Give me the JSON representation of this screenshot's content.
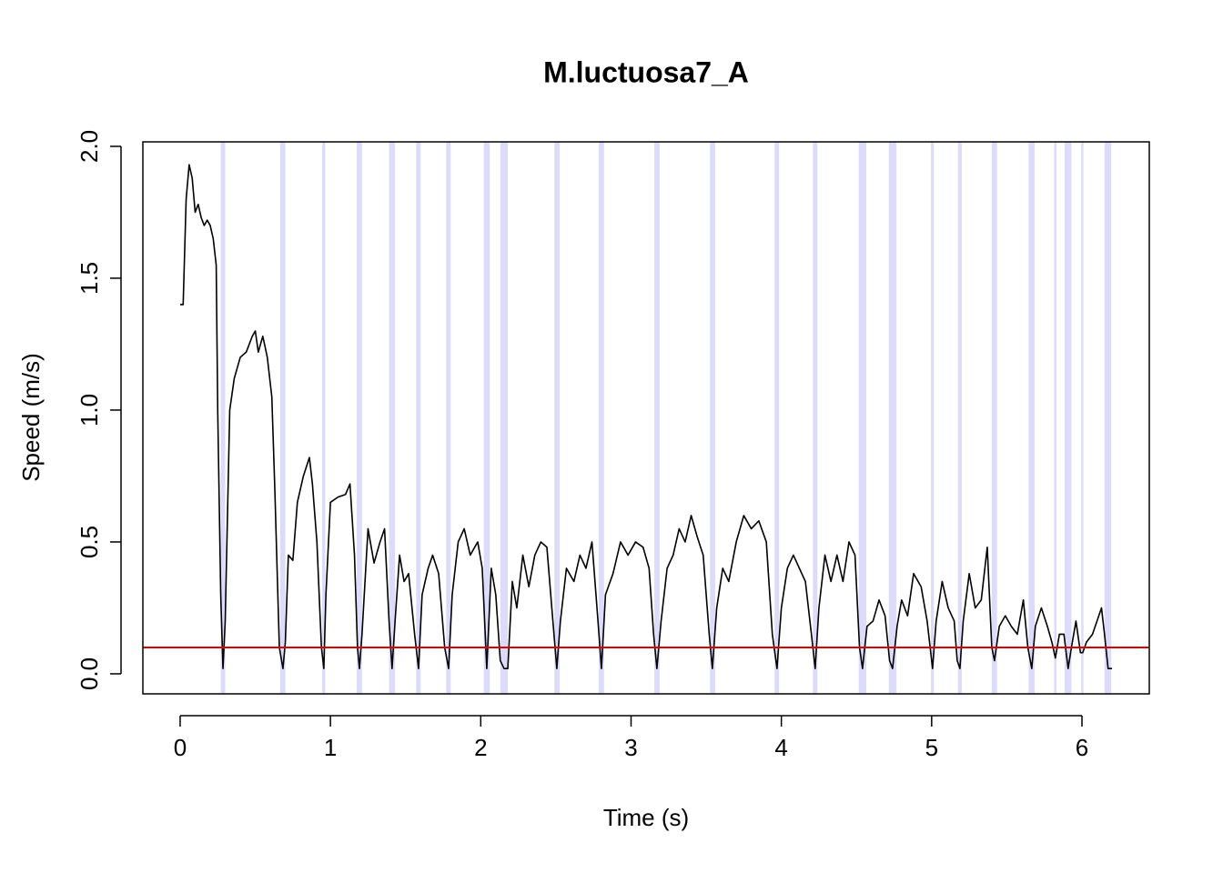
{
  "chart_data": {
    "type": "line",
    "title": "M.luctuosa7_A",
    "x_label": "Time (s)",
    "y_label": "Speed (m/s)",
    "xlim": [
      -0.248,
      6.448
    ],
    "ylim": [
      -0.076,
      2.017
    ],
    "xticks": [
      0,
      1,
      2,
      3,
      4,
      5,
      6
    ],
    "yticks": [
      {
        "value": 0,
        "label": "0.0"
      },
      {
        "value": 0.5,
        "label": "0.5"
      },
      {
        "value": 1,
        "label": "1.0"
      },
      {
        "value": 1.5,
        "label": "1.5"
      },
      {
        "value": 2,
        "label": "2.0"
      }
    ],
    "threshold": 0.1,
    "threshold_color": "#dd0000",
    "band_color": "#dcdcfa",
    "bands": [
      [
        0.27,
        0.3
      ],
      [
        0.665,
        0.7
      ],
      [
        0.945,
        0.965
      ],
      [
        1.175,
        1.21
      ],
      [
        1.39,
        1.43
      ],
      [
        1.57,
        1.6
      ],
      [
        1.77,
        1.8
      ],
      [
        2.02,
        2.06
      ],
      [
        2.13,
        2.18
      ],
      [
        2.49,
        2.525
      ],
      [
        2.785,
        2.82
      ],
      [
        3.155,
        3.19
      ],
      [
        3.525,
        3.56
      ],
      [
        3.955,
        3.985
      ],
      [
        4.21,
        4.24
      ],
      [
        4.515,
        4.565
      ],
      [
        4.715,
        4.765
      ],
      [
        4.995,
        5.015
      ],
      [
        5.175,
        5.2
      ],
      [
        5.4,
        5.435
      ],
      [
        5.645,
        5.685
      ],
      [
        5.815,
        5.83
      ],
      [
        5.885,
        5.93
      ],
      [
        5.995,
        6.01
      ],
      [
        6.15,
        6.195
      ]
    ],
    "x": [
      0,
      0.02,
      0.04,
      0.06,
      0.08,
      0.1,
      0.12,
      0.14,
      0.16,
      0.18,
      0.2,
      0.22,
      0.24,
      0.25,
      0.27,
      0.285,
      0.3,
      0.33,
      0.36,
      0.4,
      0.44,
      0.48,
      0.5,
      0.52,
      0.55,
      0.58,
      0.61,
      0.63,
      0.66,
      0.684,
      0.7,
      0.72,
      0.75,
      0.78,
      0.82,
      0.86,
      0.88,
      0.91,
      0.94,
      0.956,
      0.97,
      1.0,
      1.05,
      1.1,
      1.13,
      1.16,
      1.18,
      1.193,
      1.21,
      1.25,
      1.29,
      1.33,
      1.36,
      1.39,
      1.41,
      1.43,
      1.46,
      1.49,
      1.52,
      1.56,
      1.586,
      1.61,
      1.65,
      1.68,
      1.72,
      1.76,
      1.786,
      1.81,
      1.85,
      1.89,
      1.93,
      1.98,
      2.01,
      2.04,
      2.07,
      2.1,
      2.13,
      2.155,
      2.18,
      2.21,
      2.24,
      2.28,
      2.32,
      2.36,
      2.4,
      2.44,
      2.48,
      2.506,
      2.53,
      2.57,
      2.62,
      2.66,
      2.7,
      2.74,
      2.78,
      2.803,
      2.83,
      2.88,
      2.93,
      2.98,
      3.03,
      3.08,
      3.12,
      3.15,
      3.172,
      3.2,
      3.24,
      3.28,
      3.32,
      3.36,
      3.4,
      3.44,
      3.48,
      3.52,
      3.541,
      3.57,
      3.61,
      3.65,
      3.7,
      3.75,
      3.8,
      3.85,
      3.9,
      3.94,
      3.971,
      4.0,
      4.04,
      4.08,
      4.12,
      4.16,
      4.2,
      4.225,
      4.25,
      4.29,
      4.33,
      4.37,
      4.41,
      4.45,
      4.49,
      4.52,
      4.54,
      4.57,
      4.61,
      4.65,
      4.69,
      4.72,
      4.74,
      4.77,
      4.8,
      4.84,
      4.88,
      4.93,
      4.97,
      5.0,
      5.006,
      5.03,
      5.07,
      5.11,
      5.15,
      5.17,
      5.188,
      5.21,
      5.25,
      5.29,
      5.33,
      5.37,
      5.4,
      5.418,
      5.45,
      5.49,
      5.53,
      5.57,
      5.61,
      5.64,
      5.666,
      5.69,
      5.73,
      5.77,
      5.8,
      5.823,
      5.85,
      5.88,
      5.908,
      5.93,
      5.96,
      5.99,
      6.005,
      6.03,
      6.07,
      6.1,
      6.13,
      6.15,
      6.174,
      6.2
    ],
    "series": [
      {
        "color": "#000000",
        "values": [
          1.4,
          1.4,
          1.8,
          1.93,
          1.88,
          1.75,
          1.78,
          1.73,
          1.7,
          1.72,
          1.7,
          1.65,
          1.55,
          1.0,
          0.3,
          0.02,
          0.2,
          1.0,
          1.12,
          1.2,
          1.22,
          1.28,
          1.3,
          1.22,
          1.28,
          1.2,
          1.05,
          0.7,
          0.1,
          0.02,
          0.12,
          0.45,
          0.43,
          0.65,
          0.75,
          0.82,
          0.72,
          0.5,
          0.1,
          0.02,
          0.3,
          0.65,
          0.67,
          0.68,
          0.72,
          0.45,
          0.1,
          0.02,
          0.15,
          0.55,
          0.42,
          0.5,
          0.55,
          0.2,
          0.02,
          0.2,
          0.45,
          0.35,
          0.38,
          0.15,
          0.02,
          0.3,
          0.4,
          0.45,
          0.38,
          0.1,
          0.02,
          0.3,
          0.5,
          0.55,
          0.45,
          0.5,
          0.4,
          0.02,
          0.4,
          0.3,
          0.05,
          0.02,
          0.02,
          0.35,
          0.25,
          0.45,
          0.33,
          0.45,
          0.5,
          0.48,
          0.2,
          0.02,
          0.2,
          0.4,
          0.35,
          0.45,
          0.4,
          0.5,
          0.2,
          0.02,
          0.3,
          0.38,
          0.5,
          0.45,
          0.5,
          0.48,
          0.4,
          0.15,
          0.02,
          0.2,
          0.4,
          0.45,
          0.55,
          0.5,
          0.6,
          0.52,
          0.45,
          0.15,
          0.02,
          0.25,
          0.4,
          0.35,
          0.5,
          0.6,
          0.55,
          0.58,
          0.5,
          0.15,
          0.02,
          0.25,
          0.4,
          0.45,
          0.4,
          0.35,
          0.15,
          0.02,
          0.25,
          0.45,
          0.35,
          0.45,
          0.35,
          0.5,
          0.45,
          0.1,
          0.02,
          0.18,
          0.2,
          0.28,
          0.22,
          0.05,
          0.02,
          0.18,
          0.28,
          0.22,
          0.38,
          0.33,
          0.2,
          0.05,
          0.02,
          0.2,
          0.35,
          0.25,
          0.2,
          0.05,
          0.02,
          0.2,
          0.38,
          0.25,
          0.28,
          0.48,
          0.1,
          0.05,
          0.18,
          0.22,
          0.18,
          0.15,
          0.28,
          0.1,
          0.02,
          0.18,
          0.25,
          0.18,
          0.12,
          0.06,
          0.15,
          0.15,
          0.02,
          0.1,
          0.2,
          0.08,
          0.08,
          0.12,
          0.15,
          0.2,
          0.25,
          0.15,
          0.02,
          0.02
        ]
      }
    ]
  }
}
